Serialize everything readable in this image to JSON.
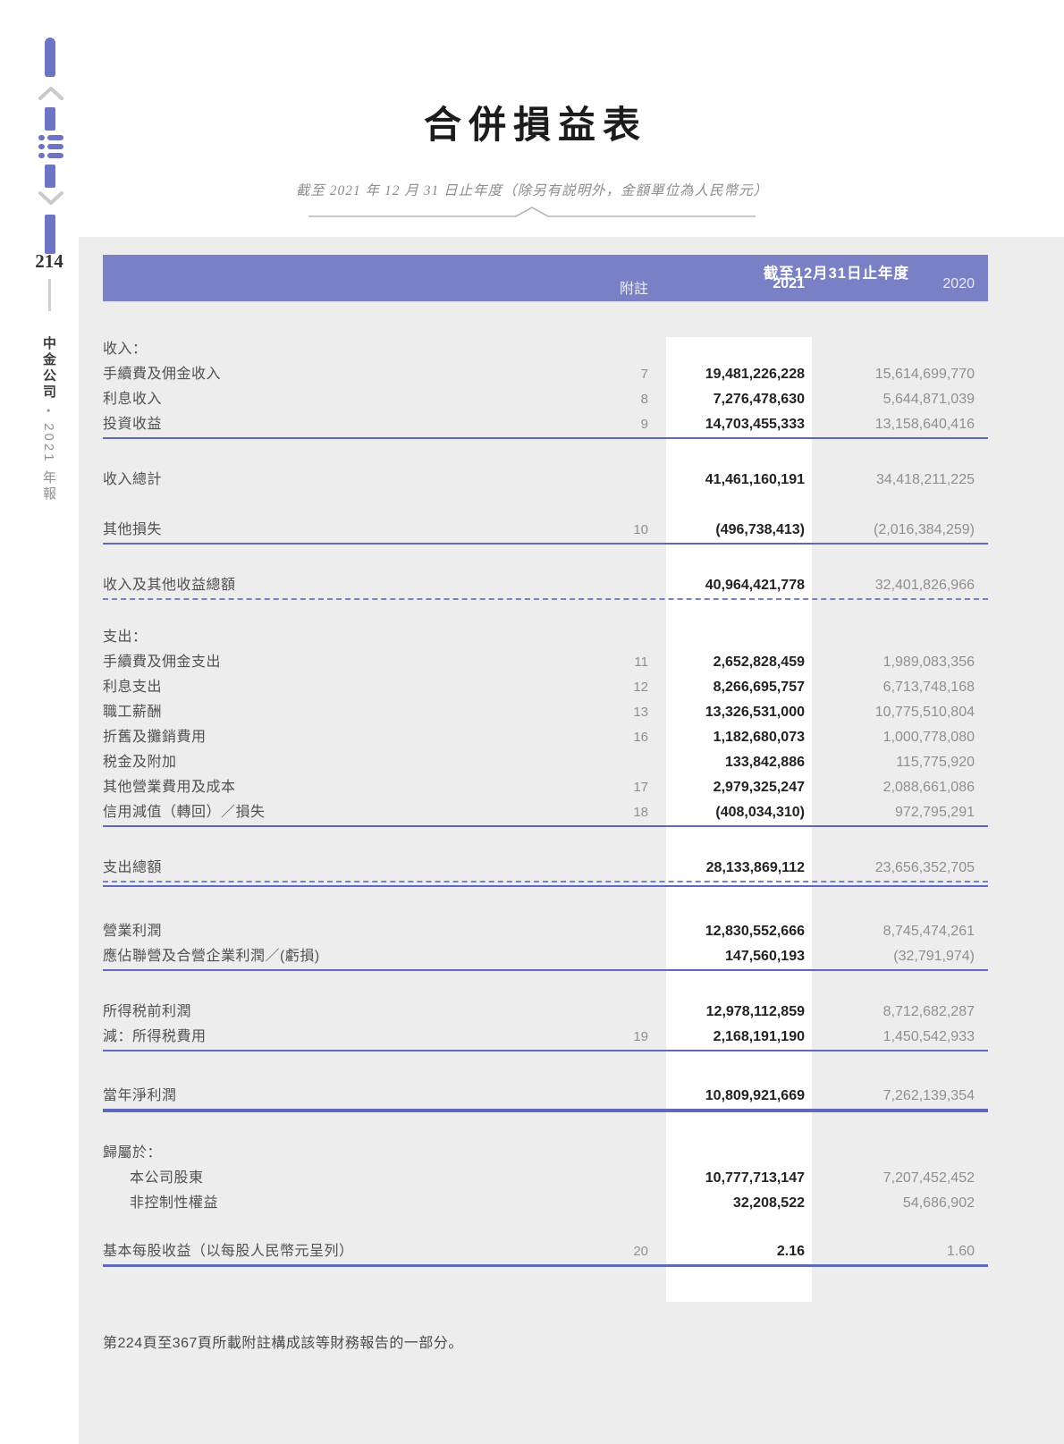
{
  "page": {
    "number": "214",
    "side_text_company": "中金公司",
    "side_text_year": "2021 年報",
    "title": "合併損益表",
    "subtitle": "截至 2021 年 12 月 31 日止年度（除另有説明外，金額單位為人民幣元）",
    "footer": "第224頁至367頁所載附註構成該等財務報告的一部分。"
  },
  "colors": {
    "accent": "#7a80c6",
    "sidebar": "#6e74c4",
    "rule": "#5f68bb",
    "table_bg": "#ededed",
    "highlight": "#ffffff",
    "text_dark": "#222222",
    "text_gray": "#8f8f8f",
    "text_label": "#515151"
  },
  "table": {
    "header": {
      "period": "截至12月31日止年度",
      "note_col": "附註",
      "col_2021": "2021",
      "col_2020": "2020"
    },
    "rows": [
      {
        "kind": "section",
        "gap": "g40",
        "label": "收入："
      },
      {
        "kind": "item",
        "label": "手續費及佣金收入",
        "note": "7",
        "v2021": "19,481,226,228",
        "v2020": "15,614,699,770"
      },
      {
        "kind": "item",
        "label": "利息收入",
        "note": "8",
        "v2021": "7,276,478,630",
        "v2020": "5,644,871,039"
      },
      {
        "kind": "item",
        "label": "投資收益",
        "note": "9",
        "v2021": "14,703,455,333",
        "v2020": "13,158,640,416",
        "rule": "solid"
      },
      {
        "kind": "item",
        "gap": "g32",
        "label": "收入總計",
        "v2021": "41,461,160,191",
        "v2020": "34,418,211,225"
      },
      {
        "kind": "item",
        "gap": "g28",
        "label": "其他損失",
        "note": "10",
        "v2021": "(496,738,413)",
        "v2020": "(2,016,384,259)",
        "rule": "solid"
      },
      {
        "kind": "item",
        "gap": "g32",
        "label": "收入及其他收益總額",
        "v2021": "40,964,421,778",
        "v2020": "32,401,826,966",
        "rule": "dashed"
      },
      {
        "kind": "section",
        "gap": "g28",
        "label": "支出："
      },
      {
        "kind": "item",
        "label": "手續費及佣金支出",
        "note": "11",
        "v2021": "2,652,828,459",
        "v2020": "1,989,083,356"
      },
      {
        "kind": "item",
        "label": "利息支出",
        "note": "12",
        "v2021": "8,266,695,757",
        "v2020": "6,713,748,168"
      },
      {
        "kind": "item",
        "label": "職工薪酬",
        "note": "13",
        "v2021": "13,326,531,000",
        "v2020": "10,775,510,804"
      },
      {
        "kind": "item",
        "label": "折舊及攤銷費用",
        "note": "16",
        "v2021": "1,182,680,073",
        "v2020": "1,000,778,080"
      },
      {
        "kind": "item",
        "label": "税金及附加",
        "v2021": "133,842,886",
        "v2020": "115,775,920"
      },
      {
        "kind": "item",
        "label": "其他營業費用及成本",
        "note": "17",
        "v2021": "2,979,325,247",
        "v2020": "2,088,661,086"
      },
      {
        "kind": "item",
        "label": "信用減值（轉回）／損失",
        "note": "18",
        "v2021": "(408,034,310)",
        "v2020": "972,795,291",
        "rule": "solid"
      },
      {
        "kind": "item",
        "gap": "g32",
        "label": "支出總額",
        "v2021": "28,133,869,112",
        "v2020": "23,656,352,705",
        "rule": "double"
      },
      {
        "kind": "item",
        "gap": "g36",
        "label": "營業利潤",
        "v2021": "12,830,552,666",
        "v2020": "8,745,474,261"
      },
      {
        "kind": "item",
        "label": "應佔聯營及合營企業利潤／(虧損)",
        "v2021": "147,560,193",
        "v2020": "(32,791,974)",
        "rule": "solid"
      },
      {
        "kind": "item",
        "gap": "g32",
        "label": "所得税前利潤",
        "v2021": "12,978,112,859",
        "v2020": "8,712,682,287"
      },
      {
        "kind": "item",
        "label": "減：所得税費用",
        "note": "19",
        "v2021": "2,168,191,190",
        "v2020": "1,450,542,933",
        "rule": "solid"
      },
      {
        "kind": "item",
        "gap": "g36",
        "label": "當年淨利潤",
        "v2021": "10,809,921,669",
        "v2020": "7,262,139,354",
        "rule": "thick"
      },
      {
        "kind": "section",
        "gap": "g32",
        "label": "歸屬於："
      },
      {
        "kind": "indent",
        "label": "本公司股東",
        "v2021": "10,777,713,147",
        "v2020": "7,207,452,452"
      },
      {
        "kind": "indent",
        "label": "非控制性權益",
        "v2021": "32,208,522",
        "v2020": "54,686,902"
      },
      {
        "kind": "item",
        "gap": "g26",
        "label": "基本每股收益（以每股人民幣元呈列）",
        "note": "20",
        "v2021": "2.16",
        "v2020": "1.60",
        "rule": "thick"
      }
    ]
  }
}
